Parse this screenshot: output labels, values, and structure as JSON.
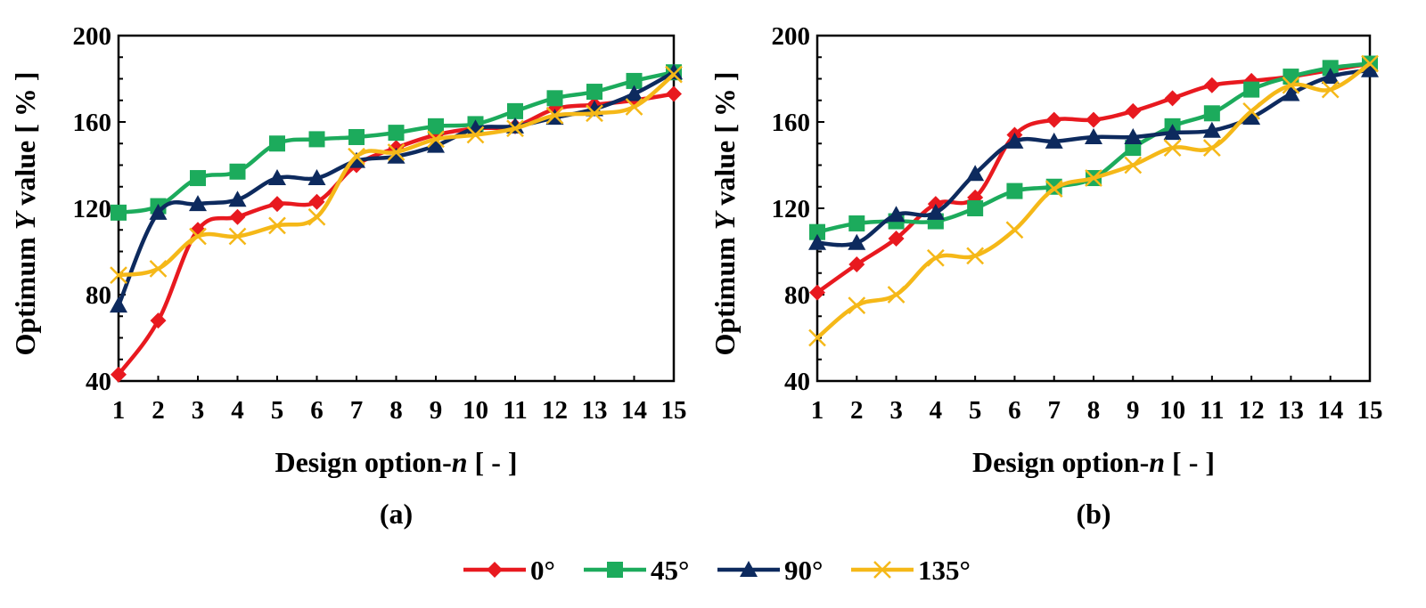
{
  "legend": {
    "entries": [
      {
        "label": "0°",
        "color": "#e8191f",
        "marker": "diamond"
      },
      {
        "label": "45°",
        "color": "#1cab5c",
        "marker": "square"
      },
      {
        "label": "90°",
        "color": "#0d2a5e",
        "marker": "triangle"
      },
      {
        "label": "135°",
        "color": "#f5b818",
        "marker": "cross"
      }
    ],
    "position": "bottom-center"
  },
  "chart_data": [
    {
      "type": "line",
      "caption": "(a)",
      "xlabel_main": "Design option-",
      "xlabel_var": "n",
      "xlabel_unit": " [ - ]",
      "ylabel_main": "Optimum ",
      "ylabel_var": "Y",
      "ylabel_unit": " value [ % ]",
      "x": [
        1,
        2,
        3,
        4,
        5,
        6,
        7,
        8,
        9,
        10,
        11,
        12,
        13,
        14,
        15
      ],
      "ylim": [
        40,
        200
      ],
      "yticks": [
        40,
        80,
        120,
        160,
        200
      ],
      "grid": false,
      "series": [
        {
          "name": "0°",
          "values": [
            43,
            68,
            110,
            116,
            122,
            123,
            140,
            148,
            154,
            157,
            158,
            166,
            168,
            170,
            173
          ]
        },
        {
          "name": "45°",
          "values": [
            118,
            121,
            134,
            137,
            150,
            152,
            153,
            155,
            158,
            159,
            165,
            171,
            174,
            179,
            183
          ]
        },
        {
          "name": "90°",
          "values": [
            75,
            118,
            122,
            124,
            134,
            134,
            142,
            144,
            149,
            157,
            158,
            162,
            166,
            173,
            183
          ]
        },
        {
          "name": "135°",
          "values": [
            89,
            92,
            107,
            107,
            112,
            116,
            144,
            146,
            152,
            154,
            157,
            163,
            164,
            167,
            182
          ]
        }
      ]
    },
    {
      "type": "line",
      "caption": "(b)",
      "xlabel_main": "Design option-",
      "xlabel_var": "n",
      "xlabel_unit": " [ - ]",
      "ylabel_main": "Optimum ",
      "ylabel_var": "Y",
      "ylabel_unit": " value [ % ]",
      "x": [
        1,
        2,
        3,
        4,
        5,
        6,
        7,
        8,
        9,
        10,
        11,
        12,
        13,
        14,
        15
      ],
      "ylim": [
        40,
        200
      ],
      "yticks": [
        40,
        80,
        120,
        160,
        200
      ],
      "grid": false,
      "series": [
        {
          "name": "0°",
          "values": [
            81,
            94,
            106,
            122,
            125,
            154,
            161,
            161,
            165,
            171,
            177,
            179,
            181,
            184,
            187
          ]
        },
        {
          "name": "45°",
          "values": [
            109,
            113,
            114,
            114,
            120,
            128,
            130,
            134,
            148,
            158,
            164,
            175,
            181,
            185,
            187
          ]
        },
        {
          "name": "90°",
          "values": [
            104,
            104,
            117,
            118,
            136,
            151,
            151,
            153,
            153,
            155,
            156,
            162,
            173,
            181,
            184
          ]
        },
        {
          "name": "135°",
          "values": [
            60,
            75,
            80,
            97,
            98,
            110,
            129,
            134,
            140,
            148,
            148,
            165,
            177,
            175,
            187
          ]
        }
      ]
    }
  ]
}
